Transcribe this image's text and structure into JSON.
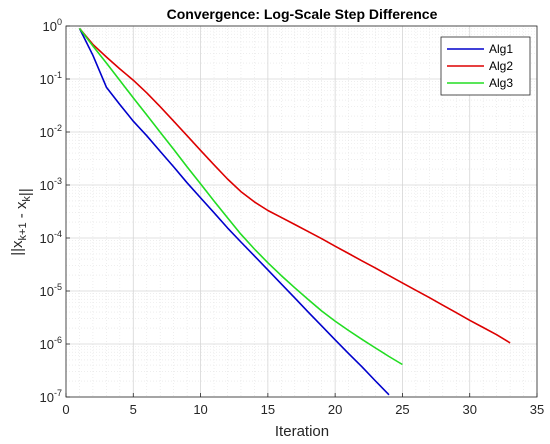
{
  "chart_data": {
    "type": "line",
    "title": "Convergence: Log-Scale Step Difference",
    "xlabel": "Iteration",
    "ylabel": "||x_{k+1} - x_k||",
    "xlim": [
      0,
      35
    ],
    "ylim": [
      1e-07,
      1
    ],
    "yscale": "log",
    "x_ticks": [
      0,
      5,
      10,
      15,
      20,
      25,
      30,
      35
    ],
    "y_ticks": [
      -7,
      -6,
      -5,
      -4,
      -3,
      -2,
      -1,
      0
    ],
    "y_tick_base": "10",
    "y_tick_exponents": [
      "-7",
      "-6",
      "-5",
      "-4",
      "-3",
      "-2",
      "-1",
      "0"
    ],
    "y_tick_top_label": "10",
    "y_tick_top_exponent": "0",
    "grid": true,
    "minor_grid": true,
    "legend_position": "top-right",
    "series": [
      {
        "name": "Alg1",
        "color": "#0000cc",
        "x": [
          1,
          2,
          3,
          4,
          5,
          6,
          7,
          8,
          9,
          10,
          11,
          12,
          13,
          14,
          15,
          16,
          17,
          18,
          19,
          20,
          21,
          22,
          23,
          24
        ],
        "y": [
          0.9,
          0.28,
          0.07,
          0.033,
          0.016,
          0.0085,
          0.0043,
          0.0022,
          0.0011,
          0.00057,
          0.0003,
          0.000155,
          8.4e-05,
          4.6e-05,
          2.5e-05,
          1.36e-05,
          7.4e-06,
          4e-06,
          2.2e-06,
          1.2e-06,
          6.6e-07,
          3.7e-07,
          2e-07,
          1.1e-07
        ]
      },
      {
        "name": "Alg2",
        "color": "#dd0000",
        "x": [
          1,
          2,
          3,
          4,
          5,
          6,
          7,
          8,
          9,
          10,
          11,
          12,
          13,
          14,
          15,
          16,
          17,
          18,
          19,
          20,
          21,
          22,
          23,
          24,
          25,
          26,
          27,
          28,
          29,
          30,
          31,
          32,
          33
        ],
        "y": [
          0.9,
          0.45,
          0.26,
          0.155,
          0.095,
          0.055,
          0.03,
          0.016,
          0.0085,
          0.0045,
          0.0024,
          0.0013,
          0.00075,
          0.00048,
          0.00033,
          0.000245,
          0.00018,
          0.000132,
          9.7e-05,
          7e-05,
          5.1e-05,
          3.7e-05,
          2.7e-05,
          1.95e-05,
          1.42e-05,
          1.03e-05,
          7.5e-06,
          5.4e-06,
          3.9e-06,
          2.8e-06,
          2.05e-06,
          1.5e-06,
          1.05e-06
        ]
      },
      {
        "name": "Alg3",
        "color": "#22dd22",
        "x": [
          1,
          2,
          3,
          4,
          5,
          6,
          7,
          8,
          9,
          10,
          11,
          12,
          13,
          14,
          15,
          16,
          17,
          18,
          19,
          20,
          21,
          22,
          23,
          24,
          25
        ],
        "y": [
          0.9,
          0.42,
          0.2,
          0.094,
          0.044,
          0.021,
          0.0099,
          0.0047,
          0.0022,
          0.00105,
          0.0005,
          0.00024,
          0.000118,
          6.2e-05,
          3.4e-05,
          1.95e-05,
          1.15e-05,
          6.9e-06,
          4.2e-06,
          2.7e-06,
          1.8e-06,
          1.22e-06,
          8.4e-07,
          5.8e-07,
          4.1e-07
        ]
      }
    ]
  }
}
